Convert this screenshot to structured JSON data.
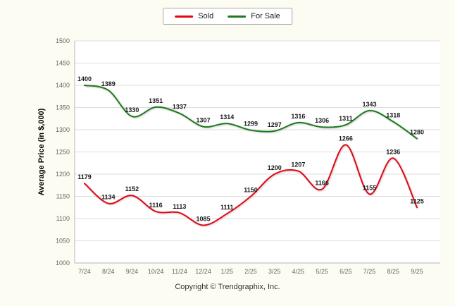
{
  "legend": {
    "items": [
      {
        "label": "Sold",
        "color": "#e30613"
      },
      {
        "label": "For Sale",
        "color": "#1e7a1e"
      }
    ]
  },
  "ylabel": "Average Price (in $,000)",
  "footer": {
    "copyright": "Copyright © Trendgraphix, Inc."
  },
  "chart_data": {
    "type": "line",
    "categories": [
      "7/24",
      "8/24",
      "9/24",
      "10/24",
      "11/24",
      "12/24",
      "1/25",
      "2/25",
      "3/25",
      "4/25",
      "5/25",
      "6/25",
      "7/25",
      "8/25",
      "9/25"
    ],
    "series": [
      {
        "name": "Sold",
        "color": "#e30613",
        "values": [
          1179,
          1134,
          1152,
          1116,
          1113,
          1085,
          1111,
          1150,
          1200,
          1207,
          1166,
          1266,
          1155,
          1236,
          1125
        ]
      },
      {
        "name": "For Sale",
        "color": "#1e7a1e",
        "values": [
          1400,
          1389,
          1330,
          1351,
          1337,
          1307,
          1314,
          1299,
          1297,
          1316,
          1306,
          1311,
          1343,
          1318,
          1280
        ]
      }
    ],
    "title": "",
    "xlabel": "",
    "ylabel": "Average Price (in $,000)",
    "ylim": [
      1000,
      1500
    ],
    "ytick_step": 50,
    "grid": true,
    "legend_position": "top",
    "colors": {
      "grid": "#dddddd",
      "axis": "#b5b5b5",
      "tick_text": "#666666",
      "data_label": "#1a1a1a",
      "plot_bg": "#ffffff"
    }
  }
}
